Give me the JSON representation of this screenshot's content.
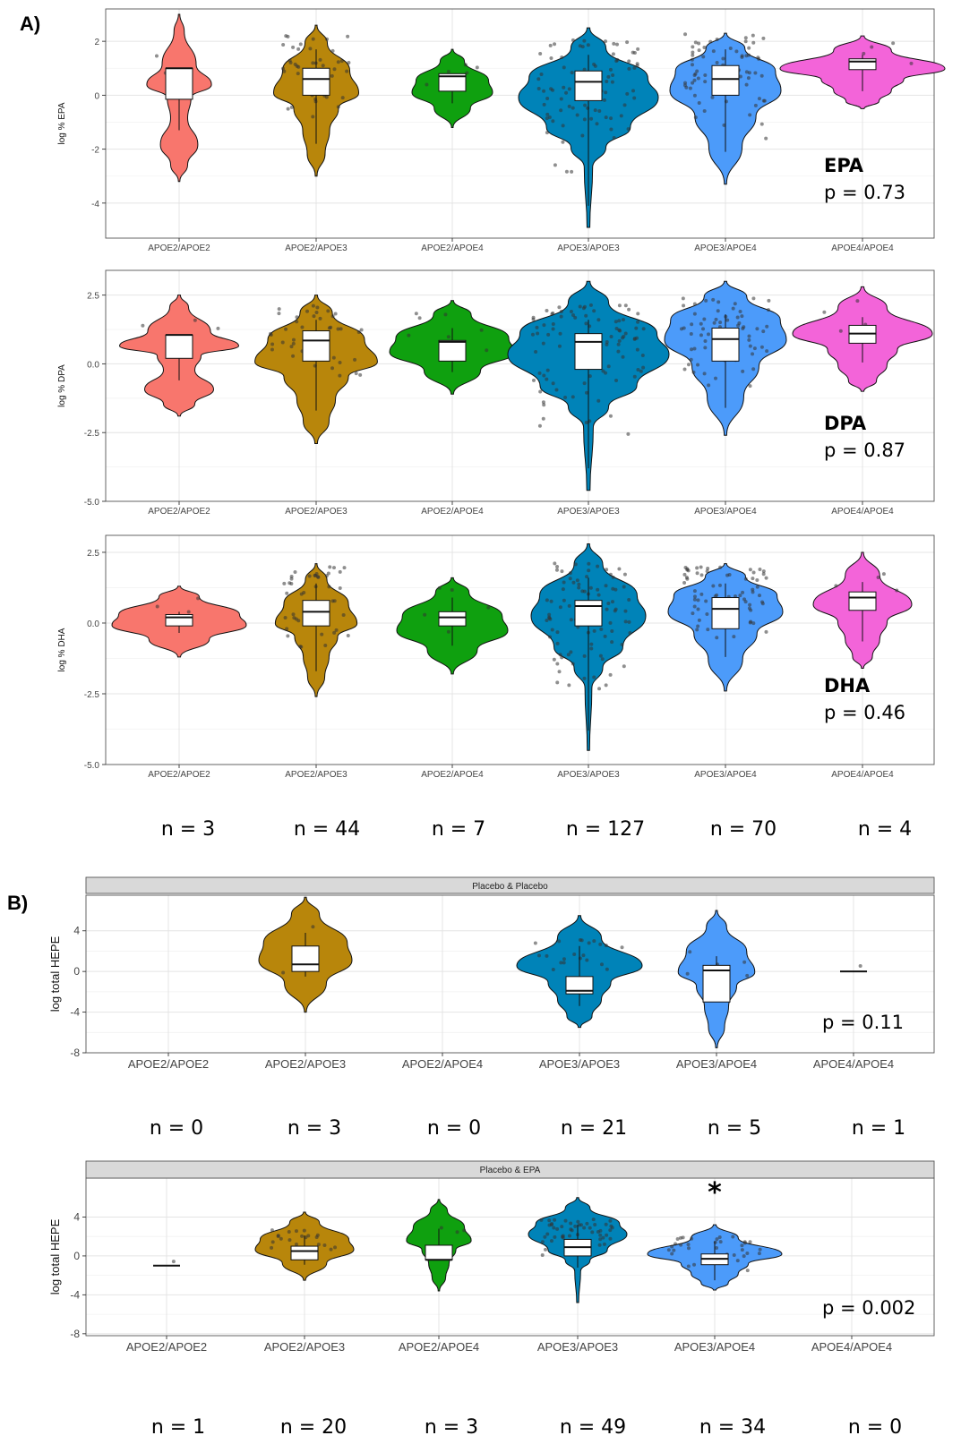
{
  "panel_labels": [
    "A)",
    "B)"
  ],
  "genotypes": [
    "APOE2/APOE2",
    "APOE2/APOE3",
    "APOE2/APOE4",
    "APOE3/APOE3",
    "APOE3/APOE4",
    "APOE4/APOE4"
  ],
  "colors": {
    "APOE2/APOE2": "#F8766D",
    "APOE2/APOE3": "#B8860B",
    "APOE2/APOE4": "#0FA00F",
    "APOE3/APOE3": "#0083B8",
    "APOE3/APOE4": "#4C9BFA",
    "APOE4/APOE4": "#F364D9"
  },
  "panelA_n_labels": [
    "n = 3",
    "n = 44",
    "n = 7",
    "n = 127",
    "n = 70",
    "n = 4"
  ],
  "panelB_top_n_labels": [
    "n = 0",
    "n = 3",
    "n = 0",
    "n = 21",
    "n = 5",
    "n = 1"
  ],
  "panelB_bottom_n_labels": [
    "n = 1",
    "n = 20",
    "n = 3",
    "n = 49",
    "n = 34",
    "n = 0"
  ],
  "chart_data": [
    {
      "type": "violin",
      "title": "",
      "ylabel": "log % EPA",
      "annotation_title": "EPA",
      "annotation_p": "p = 0.73",
      "ylim": [
        -5.3,
        3.2
      ],
      "yticks": [
        -4,
        -2,
        0,
        2
      ],
      "ytick_labels": [
        "-4",
        "-2",
        "0",
        "2"
      ],
      "categories": [
        "APOE2/APOE2",
        "APOE2/APOE3",
        "APOE2/APOE4",
        "APOE3/APOE3",
        "APOE3/APOE4",
        "APOE4/APOE4"
      ],
      "box": [
        {
          "q1": -0.15,
          "median": 1.0,
          "q3": 1.0,
          "lower": -1.3,
          "upper": 1.0
        },
        {
          "q1": 0.0,
          "median": 0.6,
          "q3": 1.0,
          "lower": -1.8,
          "upper": 1.7
        },
        {
          "q1": 0.15,
          "median": 0.7,
          "q3": 0.8,
          "lower": -0.3,
          "upper": 0.8
        },
        {
          "q1": -0.2,
          "median": 0.5,
          "q3": 0.9,
          "lower": -4.1,
          "upper": 1.5
        },
        {
          "q1": 0.0,
          "median": 0.6,
          "q3": 1.1,
          "lower": -2.1,
          "upper": 1.7
        },
        {
          "q1": 0.95,
          "median": 1.25,
          "q3": 1.35,
          "lower": 0.15,
          "upper": 1.5
        }
      ]
    },
    {
      "type": "violin",
      "title": "",
      "ylabel": "log % DPA",
      "annotation_title": "DPA",
      "annotation_p": "p = 0.87",
      "ylim": [
        -5.0,
        3.4
      ],
      "yticks": [
        -5.0,
        -2.5,
        0.0,
        2.5
      ],
      "ytick_labels": [
        "-5.0",
        "-2.5",
        "0.0",
        "2.5"
      ],
      "categories": [
        "APOE2/APOE2",
        "APOE2/APOE3",
        "APOE2/APOE4",
        "APOE3/APOE3",
        "APOE3/APOE4",
        "APOE4/APOE4"
      ],
      "box": [
        {
          "q1": 0.2,
          "median": 1.05,
          "q3": 1.05,
          "lower": -0.6,
          "upper": 1.05
        },
        {
          "q1": 0.1,
          "median": 0.85,
          "q3": 1.2,
          "lower": -1.7,
          "upper": 1.6
        },
        {
          "q1": 0.1,
          "median": 0.8,
          "q3": 0.85,
          "lower": -0.3,
          "upper": 1.3
        },
        {
          "q1": -0.2,
          "median": 0.8,
          "q3": 1.1,
          "lower": -3.8,
          "upper": 1.6
        },
        {
          "q1": 0.1,
          "median": 0.9,
          "q3": 1.3,
          "lower": -1.6,
          "upper": 1.8
        },
        {
          "q1": 0.75,
          "median": 1.1,
          "q3": 1.4,
          "lower": 0.05,
          "upper": 1.7
        }
      ]
    },
    {
      "type": "violin",
      "title": "",
      "ylabel": "log % DHA",
      "annotation_title": "DHA",
      "annotation_p": "p = 0.46",
      "ylim": [
        -5.0,
        3.1
      ],
      "yticks": [
        -5.0,
        -2.5,
        0.0,
        2.5
      ],
      "ytick_labels": [
        "-5.0",
        "-2.5",
        "0.0",
        "2.5"
      ],
      "categories": [
        "APOE2/APOE2",
        "APOE2/APOE3",
        "APOE2/APOE4",
        "APOE3/APOE3",
        "APOE3/APOE4",
        "APOE4/APOE4"
      ],
      "box": [
        {
          "q1": -0.1,
          "median": 0.2,
          "q3": 0.3,
          "lower": -0.35,
          "upper": 0.4
        },
        {
          "q1": -0.1,
          "median": 0.4,
          "q3": 0.8,
          "lower": -1.7,
          "upper": 1.4
        },
        {
          "q1": -0.1,
          "median": 0.2,
          "q3": 0.4,
          "lower": -0.8,
          "upper": 0.9
        },
        {
          "q1": -0.1,
          "median": 0.6,
          "q3": 0.8,
          "lower": -3.8,
          "upper": 1.6
        },
        {
          "q1": -0.2,
          "median": 0.5,
          "q3": 0.9,
          "lower": -1.2,
          "upper": 1.4
        },
        {
          "q1": 0.45,
          "median": 0.9,
          "q3": 1.1,
          "lower": -0.65,
          "upper": 1.45
        }
      ]
    },
    {
      "type": "violin",
      "title": "Placebo & Placebo",
      "ylabel": "log total HEPE",
      "annotation_title": "",
      "annotation_p": "p = 0.11",
      "ylim": [
        -8,
        7.5
      ],
      "yticks": [
        -8,
        -4,
        0,
        4
      ],
      "ytick_labels": [
        "-8",
        "-4",
        "0",
        "4"
      ],
      "categories": [
        "APOE2/APOE2",
        "APOE2/APOE3",
        "APOE2/APOE4",
        "APOE3/APOE3",
        "APOE3/APOE4",
        "APOE4/APOE4"
      ],
      "box": [
        null,
        {
          "q1": 0.0,
          "median": 0.7,
          "q3": 2.5,
          "lower": -0.5,
          "upper": 3.8
        },
        null,
        {
          "q1": -2.2,
          "median": -1.9,
          "q3": -0.5,
          "lower": -3.4,
          "upper": 2.5
        },
        {
          "q1": -3.0,
          "median": 0.1,
          "q3": 0.6,
          "lower": -3.0,
          "upper": 1.5
        },
        {
          "q1": 0.0,
          "median": 0.0,
          "q3": 0.0,
          "lower": 0.0,
          "upper": 0.0
        }
      ]
    },
    {
      "type": "violin",
      "title": "Placebo & EPA",
      "ylabel": "log total HEPE",
      "annotation_title": "",
      "annotation_p": "p = 0.002",
      "significance_marker": "*",
      "ylim": [
        -8.2,
        8
      ],
      "yticks": [
        -8,
        -4,
        0,
        4
      ],
      "ytick_labels": [
        "-8",
        "-4",
        "0",
        "4"
      ],
      "categories": [
        "APOE2/APOE2",
        "APOE2/APOE3",
        "APOE2/APOE4",
        "APOE3/APOE3",
        "APOE3/APOE4",
        "APOE4/APOE4"
      ],
      "box": [
        {
          "q1": -1.0,
          "median": -1.0,
          "q3": -1.0,
          "lower": -1.0,
          "upper": -1.0
        },
        {
          "q1": -0.4,
          "median": 0.5,
          "q3": 1.0,
          "lower": -0.9,
          "upper": 2.1
        },
        {
          "q1": -0.4,
          "median": -0.4,
          "q3": 1.1,
          "lower": -0.4,
          "upper": 2.8
        },
        {
          "q1": 0.0,
          "median": 0.9,
          "q3": 1.7,
          "lower": -1.2,
          "upper": 3.2
        },
        {
          "q1": -0.9,
          "median": -0.3,
          "q3": 0.2,
          "lower": -2.5,
          "upper": 1.5
        },
        null
      ]
    }
  ]
}
